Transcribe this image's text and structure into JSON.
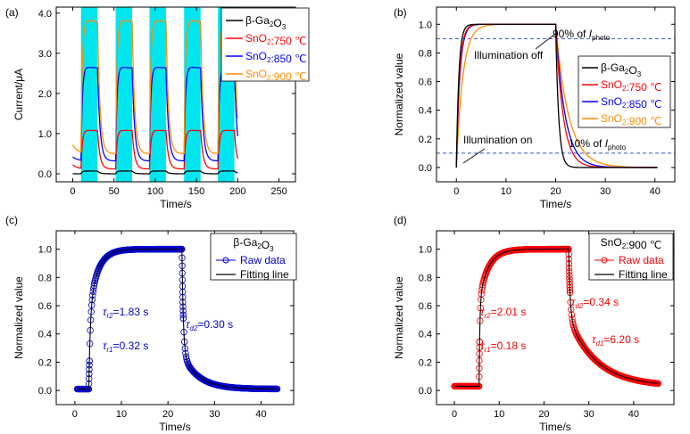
{
  "figure": {
    "panel_labels": [
      "(a)",
      "(b)",
      "(c)",
      "(d)"
    ]
  },
  "colors": {
    "beta": "#000000",
    "s750": "#ff0000",
    "s850": "#0000ff",
    "s900": "#ff8c00",
    "illum": "#00e5ee",
    "dash": "#3050c8",
    "blue_fit": "#0000cc",
    "red_fit": "#ff0000"
  },
  "chart_data": [
    {
      "panel": "(a)",
      "type": "line",
      "xlabel": "Time/s",
      "ylabel": "Current/μA",
      "xlim": [
        -20,
        270
      ],
      "ylim": [
        -0.2,
        4.15
      ],
      "xticks": [
        0,
        50,
        100,
        150,
        200,
        250
      ],
      "yticks": [
        0.0,
        1.0,
        2.0,
        3.0,
        4.0
      ],
      "ytick_labels": [
        "0.0",
        "1.0",
        "2.0",
        "3.0",
        "4.0"
      ],
      "illumination_windows": [
        [
          10,
          30
        ],
        [
          52,
          72
        ],
        [
          93,
          113
        ],
        [
          135,
          155
        ],
        [
          176,
          196
        ]
      ],
      "legend": [
        "β-Ga2O3",
        "SnO2:750 ℃",
        "SnO2:850 ℃",
        "SnO2:900 ℃"
      ],
      "series": [
        {
          "name": "β-Ga2O3",
          "color": "#000000",
          "dark": 0.0,
          "on": 0.07,
          "start": 0.0
        },
        {
          "name": "SnO2:750 ℃",
          "color": "#ff0000",
          "dark": 0.12,
          "on": 1.1,
          "start": 0.22
        },
        {
          "name": "SnO2:850 ℃",
          "color": "#0000ff",
          "dark": 0.32,
          "on": 2.7,
          "start": 0.42
        },
        {
          "name": "SnO2:900 ℃",
          "color": "#ff8c00",
          "dark": 0.5,
          "on": 3.88,
          "start": 0.72
        }
      ]
    },
    {
      "panel": "(b)",
      "type": "line",
      "xlabel": "Time/s",
      "ylabel": "Normalized value",
      "xlim": [
        -4,
        44
      ],
      "ylim": [
        -0.1,
        1.12
      ],
      "xticks": [
        0,
        10,
        20,
        30,
        40
      ],
      "yticks": [
        0.0,
        0.2,
        0.4,
        0.6,
        0.8,
        1.0
      ],
      "ytick_labels": [
        "0.0",
        "0.2",
        "0.4",
        "0.6",
        "0.8",
        "1.0"
      ],
      "legend": [
        "β-Ga2O3",
        "SnO2:750 ℃",
        "SnO2:850 ℃",
        "SnO2:900 ℃"
      ],
      "reference_lines": [
        0.9,
        0.1
      ],
      "annotations": {
        "ninety": "90% of I",
        "ninety_sub": "photo",
        "ten": "10% of I",
        "ten_sub": "photo",
        "off": "Illumination off",
        "on": "Illumination on"
      },
      "on_time": 0,
      "off_time": 20,
      "end_time": 40.5,
      "series": [
        {
          "name": "β-Ga2O3",
          "color": "#000000",
          "tau_rise": 0.5,
          "tau_decay": 0.6
        },
        {
          "name": "SnO2:750 ℃",
          "color": "#ff0000",
          "tau_rise": 0.65,
          "tau_decay": 1.5
        },
        {
          "name": "SnO2:850 ℃",
          "color": "#0000ff",
          "tau_rise": 0.7,
          "tau_decay": 1.9
        },
        {
          "name": "SnO2:900 ℃",
          "color": "#ff8c00",
          "tau_rise": 1.3,
          "tau_decay": 2.6
        }
      ]
    },
    {
      "panel": "(c)",
      "type": "scatter",
      "xlabel": "Time/s",
      "ylabel": "Normalized value",
      "xlim": [
        -4,
        47
      ],
      "ylim": [
        -0.1,
        1.13
      ],
      "xticks": [
        0,
        10,
        20,
        30,
        40
      ],
      "yticks": [
        0.0,
        0.2,
        0.4,
        0.6,
        0.8,
        1.0
      ],
      "ytick_labels": [
        "0.0",
        "0.2",
        "0.4",
        "0.6",
        "0.8",
        "1.0"
      ],
      "legend_title": "β-Ga2O3",
      "legend": [
        "Raw data",
        "Fitting line"
      ],
      "color": "#0000cc",
      "t_start": 0.5,
      "t_on": 3,
      "t_off": 23,
      "t_end": 43.5,
      "baseline": 0.01,
      "annotations": [
        "τr2=1.83 s",
        "τr1=0.32 s",
        "τd2=0.30 s"
      ]
    },
    {
      "panel": "(d)",
      "type": "scatter",
      "xlabel": "Time/s",
      "ylabel": "Normalized value",
      "xlim": [
        -4,
        49
      ],
      "ylim": [
        -0.1,
        1.13
      ],
      "xticks": [
        0,
        10,
        20,
        30,
        40
      ],
      "yticks": [
        0.0,
        0.2,
        0.4,
        0.6,
        0.8,
        1.0
      ],
      "ytick_labels": [
        "0.0",
        "0.2",
        "0.4",
        "0.6",
        "0.8",
        "1.0"
      ],
      "legend_title": "SnO2:900 ℃",
      "legend": [
        "Raw data",
        "Fitting line"
      ],
      "color": "#ff0000",
      "t_start": 0,
      "t_on": 5.5,
      "t_off": 25.5,
      "t_end": 45.5,
      "baseline": 0.03,
      "annotations": [
        "τr2=2.01 s",
        "τr1=0.18 s",
        "τd2=0.34 s",
        "τd1=6.20 s"
      ]
    }
  ]
}
